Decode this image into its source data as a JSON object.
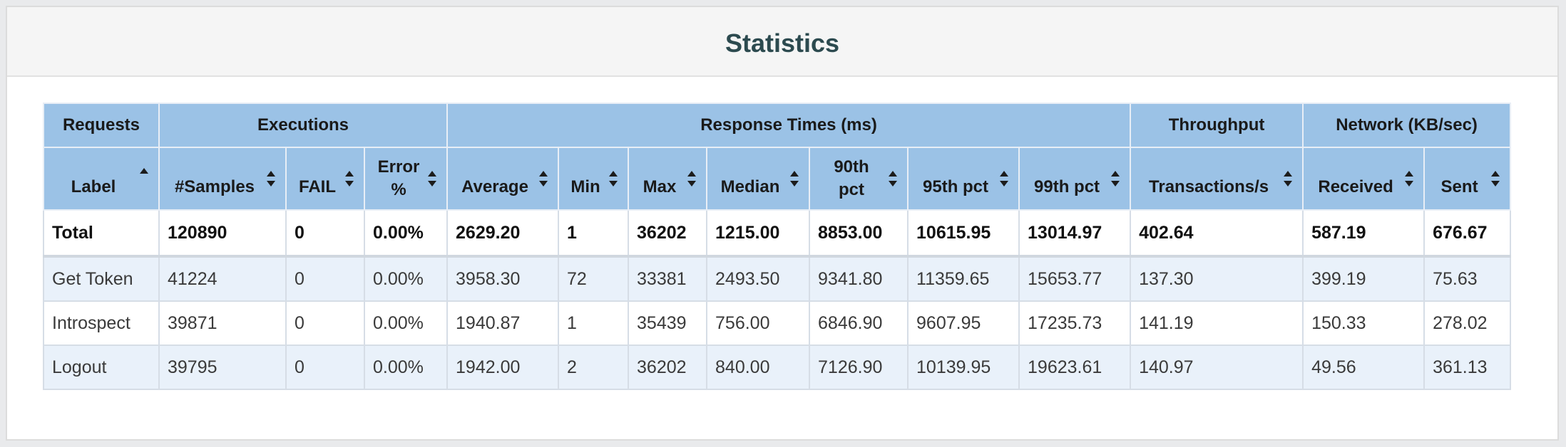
{
  "page": {
    "title": "Statistics"
  },
  "groups": [
    {
      "label": "Requests"
    },
    {
      "label": "Executions"
    },
    {
      "label": "Response Times (ms)"
    },
    {
      "label": "Throughput"
    },
    {
      "label": "Network (KB/sec)"
    }
  ],
  "columns": [
    {
      "label": "Label",
      "sort": "ascending"
    },
    {
      "label": "#Samples",
      "sort": "none"
    },
    {
      "label": "FAIL",
      "sort": "none"
    },
    {
      "label": "Error %",
      "sort": "none"
    },
    {
      "label": "Average",
      "sort": "none"
    },
    {
      "label": "Min",
      "sort": "none"
    },
    {
      "label": "Max",
      "sort": "none"
    },
    {
      "label": "Median",
      "sort": "none"
    },
    {
      "label": "90th pct",
      "sort": "none"
    },
    {
      "label": "95th pct",
      "sort": "none"
    },
    {
      "label": "99th pct",
      "sort": "none"
    },
    {
      "label": "Transactions/s",
      "sort": "none"
    },
    {
      "label": "Received",
      "sort": "none"
    },
    {
      "label": "Sent",
      "sort": "none"
    }
  ],
  "rows": [
    [
      "Total",
      "120890",
      "0",
      "0.00%",
      "2629.20",
      "1",
      "36202",
      "1215.00",
      "8853.00",
      "10615.95",
      "13014.97",
      "402.64",
      "587.19",
      "676.67"
    ],
    [
      "Get Token",
      "41224",
      "0",
      "0.00%",
      "3958.30",
      "72",
      "33381",
      "2493.50",
      "9341.80",
      "11359.65",
      "15653.77",
      "137.30",
      "399.19",
      "75.63"
    ],
    [
      "Introspect",
      "39871",
      "0",
      "0.00%",
      "1940.87",
      "1",
      "35439",
      "756.00",
      "6846.90",
      "9607.95",
      "17235.73",
      "141.19",
      "150.33",
      "278.02"
    ],
    [
      "Logout",
      "39795",
      "0",
      "0.00%",
      "1942.00",
      "2",
      "36202",
      "840.00",
      "7126.90",
      "10139.95",
      "19623.61",
      "140.97",
      "49.56",
      "361.13"
    ]
  ]
}
